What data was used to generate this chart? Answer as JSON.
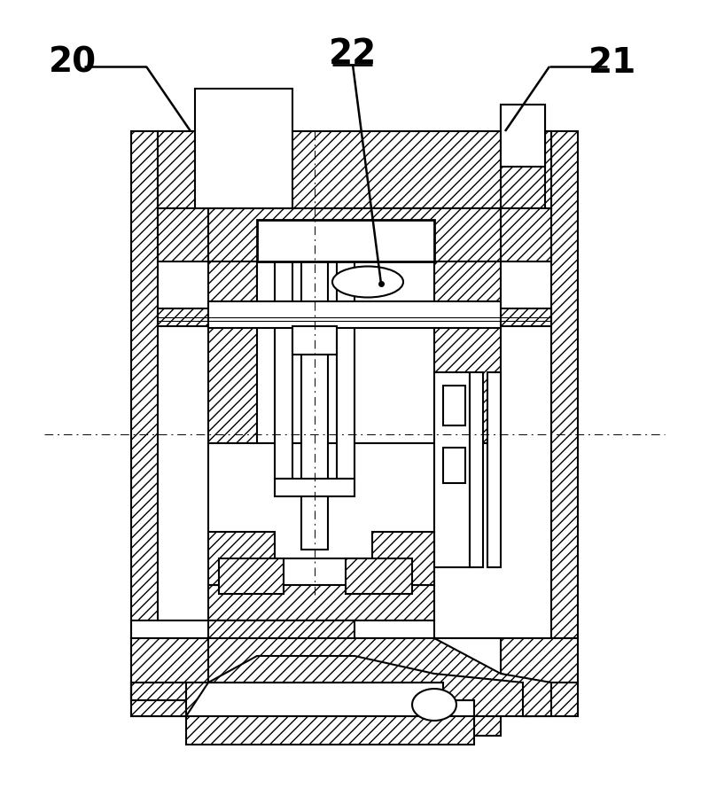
{
  "bg_color": "#ffffff",
  "line_color": "#000000",
  "label_fontsize": 28,
  "fig_width": 8.0,
  "fig_height": 8.89,
  "dpi": 100,
  "labels": {
    "20": [
      55,
      832
    ],
    "21": [
      718,
      832
    ],
    "22": [
      383,
      858
    ]
  }
}
